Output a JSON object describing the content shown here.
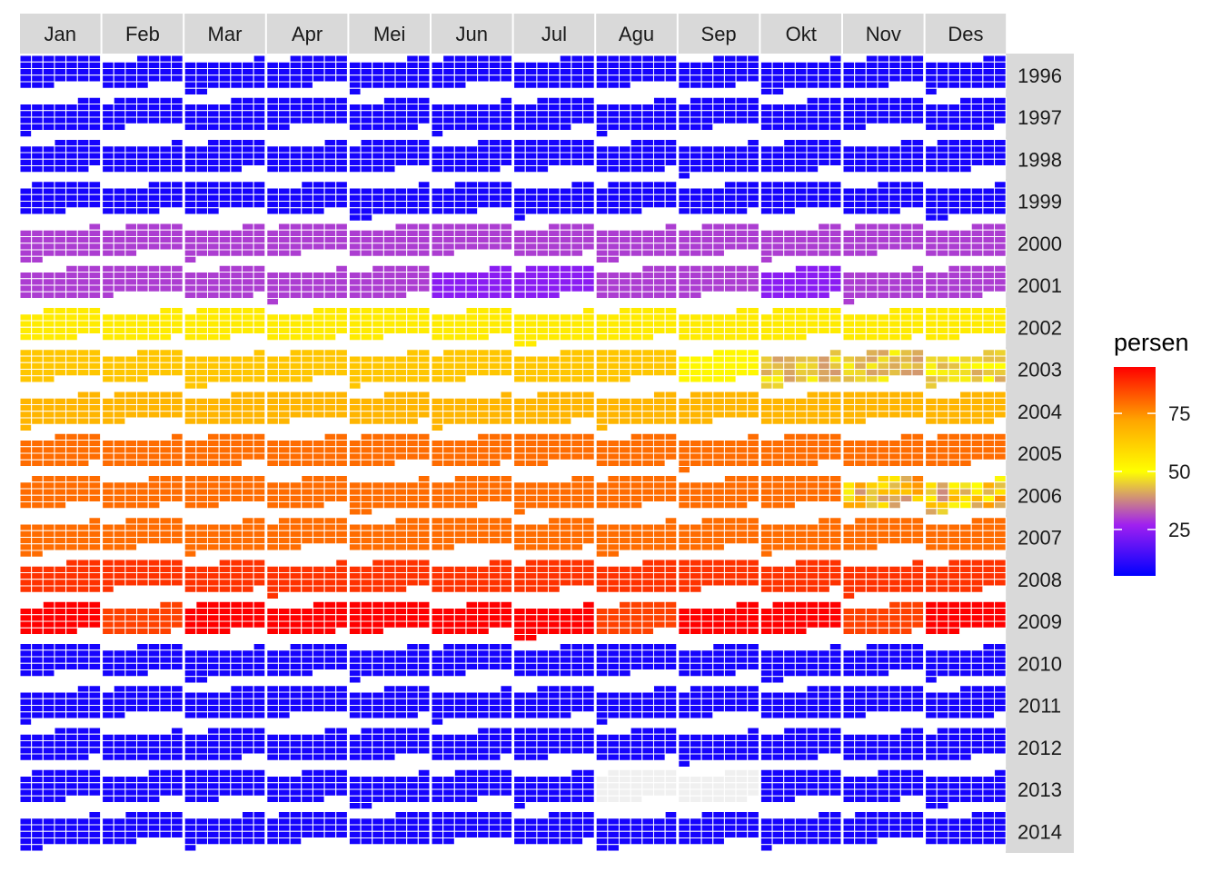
{
  "chart_data": {
    "type": "heatmap",
    "layout": "calendar",
    "months": [
      "Jan",
      "Feb",
      "Mar",
      "Apr",
      "Mei",
      "Jun",
      "Jul",
      "Agu",
      "Sep",
      "Okt",
      "Nov",
      "Des"
    ],
    "years": [
      "1996",
      "1997",
      "1998",
      "1999",
      "2000",
      "2001",
      "2002",
      "2003",
      "2004",
      "2005",
      "2006",
      "2007",
      "2008",
      "2009",
      "2010",
      "2011",
      "2012",
      "2013",
      "2014"
    ],
    "year_values": [
      8,
      8,
      8,
      8,
      30,
      30,
      55,
      64,
      68,
      80,
      80,
      80,
      88,
      95,
      8,
      8,
      8,
      8,
      8
    ],
    "month_overrides": [
      {
        "year": "2009",
        "month": "Feb",
        "value": 86
      },
      {
        "year": "2009",
        "month": "Agu",
        "value": 86
      },
      {
        "year": "2009",
        "month": "Nov",
        "value": 86
      },
      {
        "year": "2001",
        "month": "Jun",
        "value": 24
      },
      {
        "year": "2001",
        "month": "Jul",
        "value": 24
      },
      {
        "year": "2001",
        "month": "Okt",
        "value": 24
      },
      {
        "year": "2003",
        "month": "Sep",
        "value": 52
      },
      {
        "year": "2003",
        "month": "Okt",
        "value": 44
      },
      {
        "year": "2003",
        "month": "Nov",
        "value": 44
      },
      {
        "year": "2003",
        "month": "Des",
        "value": 46
      },
      {
        "year": "2006",
        "month": "Nov",
        "value": 58
      },
      {
        "year": "2006",
        "month": "Des",
        "value": 58
      }
    ],
    "missing": [
      {
        "year": "2013",
        "month": "Agu"
      },
      {
        "year": "2013",
        "month": "Sep"
      }
    ],
    "legend": {
      "title": "persen",
      "min": 5,
      "max": 95,
      "ticks": [
        25,
        50,
        75
      ],
      "colors": [
        "#0000ff",
        "#a020f0",
        "#ffff00",
        "#ffa500",
        "#ff0000"
      ],
      "color_stops": [
        5,
        27,
        50,
        72,
        95
      ]
    },
    "grid_line_color": "#ffffff",
    "panel_background": "#ffffff",
    "strip_color": "#d9d9d9"
  }
}
